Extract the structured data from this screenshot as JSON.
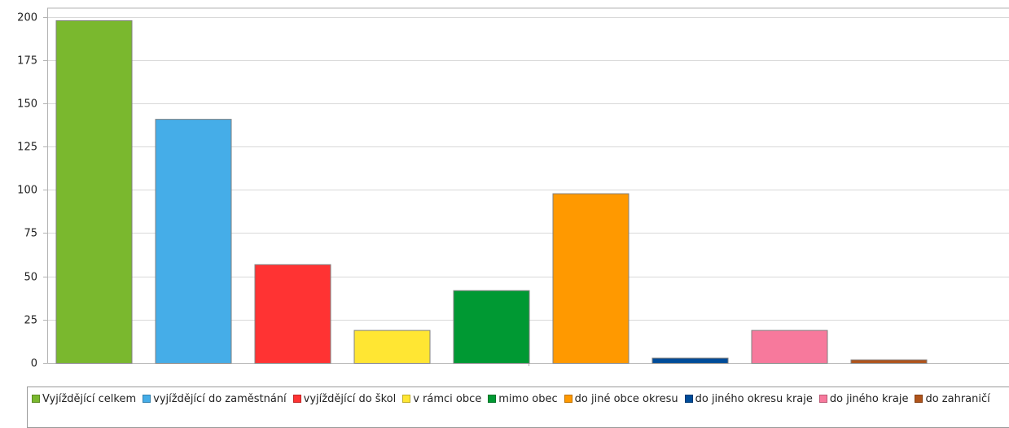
{
  "chart_data": {
    "type": "bar",
    "title": "",
    "xlabel": "",
    "ylabel": "",
    "ylim": [
      0,
      205
    ],
    "yticks": [
      0,
      25,
      50,
      75,
      100,
      125,
      150,
      175,
      200
    ],
    "grid": true,
    "legend_position": "bottom",
    "series": [
      {
        "name": "Vyjíždějící celkem",
        "value": 198,
        "color": "#7ab82e"
      },
      {
        "name": "vyjíždějící do zaměstnání",
        "value": 141,
        "color": "#45ade8"
      },
      {
        "name": "vyjíždějící do škol",
        "value": 57,
        "color": "#ff3333"
      },
      {
        "name": "v rámci obce",
        "value": 19,
        "color": "#ffe633"
      },
      {
        "name": "mimo obec",
        "value": 42,
        "color": "#009933"
      },
      {
        "name": "do jiné obce okresu",
        "value": 98,
        "color": "#ff9900"
      },
      {
        "name": "do jiného okresu kraje",
        "value": 3,
        "color": "#004c99"
      },
      {
        "name": "do jiného kraje",
        "value": 19,
        "color": "#f7799c"
      },
      {
        "name": "do zahraničí",
        "value": 2,
        "color": "#b0541b"
      }
    ]
  }
}
